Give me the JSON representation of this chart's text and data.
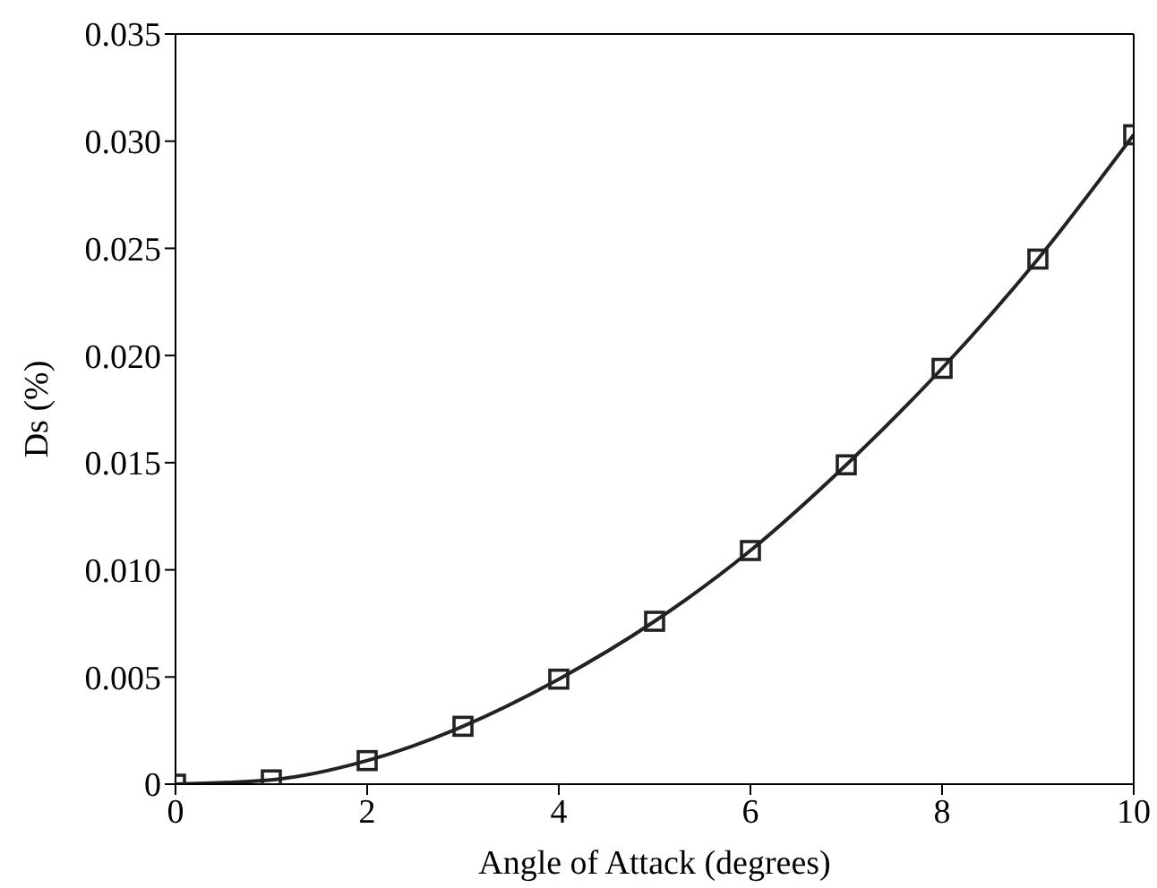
{
  "chart_data": {
    "type": "line",
    "xlabel": "Angle of Attack (degrees)",
    "ylabel": "Ds (%)",
    "x": [
      0,
      1,
      2,
      3,
      4,
      5,
      6,
      7,
      8,
      9,
      10
    ],
    "series": [
      {
        "color": "#222222",
        "values": [
          0,
          0.0002,
          0.0011,
          0.0027,
          0.0049,
          0.0076,
          0.0109,
          0.0149,
          0.0194,
          0.0245,
          0.0303
        ]
      }
    ],
    "xlim": [
      0,
      10
    ],
    "xticks": [
      0,
      2,
      4,
      6,
      8,
      10
    ],
    "ylim": [
      0,
      0.035
    ],
    "yticks": [
      0,
      {
        "value": 0.005,
        "label": "0.005"
      },
      {
        "value": 0.01,
        "label": "0.010"
      },
      {
        "value": 0.015,
        "label": "0.015"
      },
      {
        "value": 0.02,
        "label": "0.020"
      },
      {
        "value": 0.025,
        "label": "0.025"
      },
      {
        "value": 0.03,
        "label": "0.030"
      },
      {
        "value": 0.035,
        "label": "0.035"
      }
    ],
    "marker": "square",
    "line_style": "solid",
    "grid": false
  }
}
